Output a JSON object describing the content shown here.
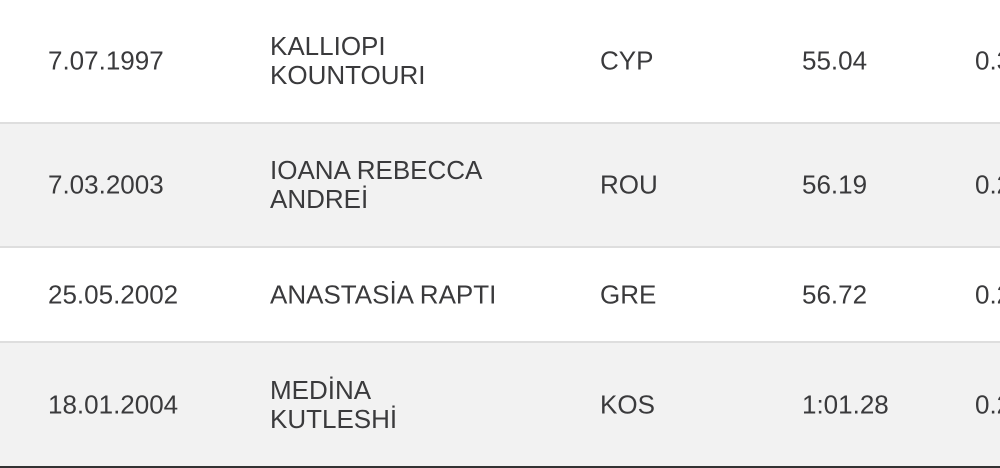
{
  "rows": [
    {
      "birth_date": "7.07.1997",
      "name": "KALLIOPI KOUNTOURI",
      "country": "CYP",
      "time": "55.04",
      "next": "0.3"
    },
    {
      "birth_date": "7.03.2003",
      "name": "IOANA REBECCA ANDREİ",
      "country": "ROU",
      "time": "56.19",
      "next": "0.2"
    },
    {
      "birth_date": "25.05.2002",
      "name": "ANASTASİA RAPTI",
      "country": "GRE",
      "time": "56.72",
      "next": "0.2"
    },
    {
      "birth_date": "18.01.2004",
      "name": "MEDİNA KUTLESHİ",
      "country": "KOS",
      "time": "1:01.28",
      "next": "0.2"
    }
  ]
}
